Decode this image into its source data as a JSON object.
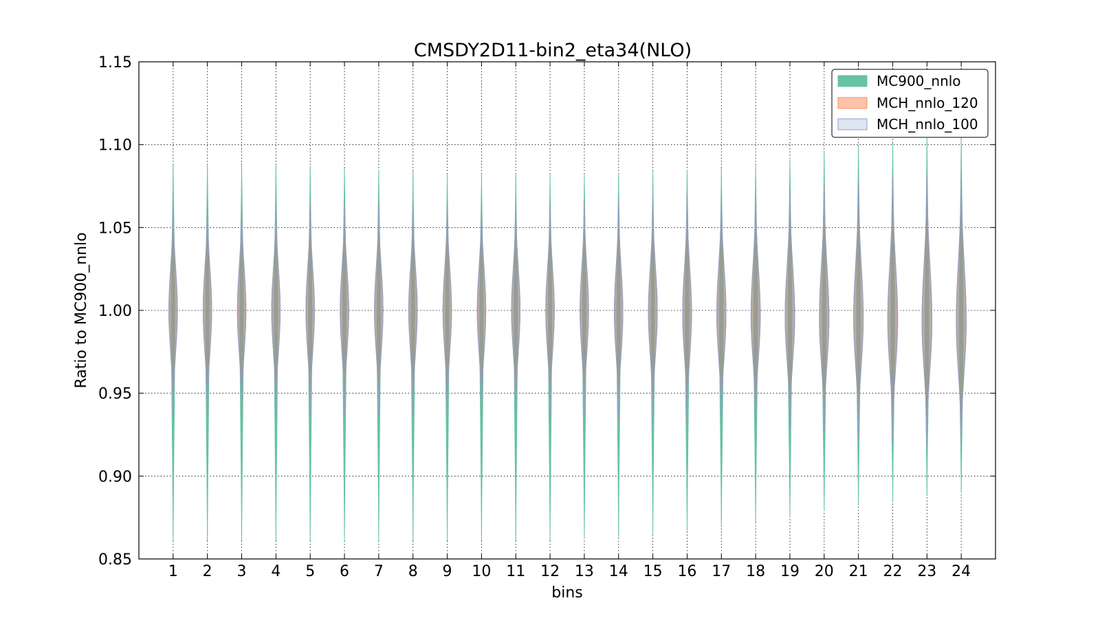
{
  "chart_data": {
    "type": "violin",
    "title": "CMSDY2D11-bin2_eta34(NLO)",
    "xlabel": "bins",
    "ylabel": "Ratio to MC900_nnlo",
    "ylim": [
      0.85,
      1.15
    ],
    "yticks": [
      "0.85",
      "0.90",
      "0.95",
      "1.00",
      "1.05",
      "1.10",
      "1.15"
    ],
    "yticks_values": [
      0.85,
      0.9,
      0.95,
      1.0,
      1.05,
      1.1,
      1.15
    ],
    "categories": [
      "1",
      "2",
      "3",
      "4",
      "5",
      "6",
      "7",
      "8",
      "9",
      "10",
      "11",
      "12",
      "13",
      "14",
      "15",
      "16",
      "17",
      "18",
      "19",
      "20",
      "21",
      "22",
      "23",
      "24"
    ],
    "grid": true,
    "legend_position": "top-right",
    "series": [
      {
        "name": "MC900_nnlo",
        "color": "#66c2a5",
        "min": [
          0.861,
          0.861,
          0.861,
          0.861,
          0.861,
          0.861,
          0.861,
          0.861,
          0.861,
          0.861,
          0.861,
          0.861,
          0.862,
          0.863,
          0.865,
          0.867,
          0.869,
          0.872,
          0.875,
          0.879,
          0.882,
          0.885,
          0.888,
          0.89
        ],
        "max": [
          1.088,
          1.088,
          1.088,
          1.088,
          1.087,
          1.086,
          1.085,
          1.084,
          1.082,
          1.082,
          1.082,
          1.082,
          1.082,
          1.083,
          1.084,
          1.085,
          1.086,
          1.088,
          1.092,
          1.095,
          1.099,
          1.101,
          1.104,
          1.105
        ],
        "width": [
          0.1,
          0.1,
          0.1,
          0.1,
          0.1,
          0.1,
          0.1,
          0.1,
          0.1,
          0.1,
          0.1,
          0.1,
          0.1,
          0.1,
          0.1,
          0.11,
          0.11,
          0.11,
          0.11,
          0.11,
          0.11,
          0.11,
          0.11,
          0.11
        ]
      },
      {
        "name": "MCH_nnlo_120",
        "color": "#fc8d62",
        "min": [
          0.935,
          0.935,
          0.935,
          0.935,
          0.935,
          0.935,
          0.935,
          0.935,
          0.935,
          0.935,
          0.935,
          0.935,
          0.934,
          0.933,
          0.932,
          0.931,
          0.93,
          0.929,
          0.927,
          0.925,
          0.922,
          0.92,
          0.918,
          0.916
        ],
        "max": [
          1.066,
          1.066,
          1.066,
          1.066,
          1.066,
          1.066,
          1.066,
          1.066,
          1.066,
          1.066,
          1.066,
          1.066,
          1.067,
          1.068,
          1.069,
          1.07,
          1.071,
          1.073,
          1.075,
          1.077,
          1.079,
          1.081,
          1.083,
          1.085
        ],
        "width": [
          0.25,
          0.25,
          0.25,
          0.25,
          0.25,
          0.25,
          0.25,
          0.25,
          0.25,
          0.25,
          0.25,
          0.25,
          0.25,
          0.25,
          0.26,
          0.26,
          0.27,
          0.27,
          0.28,
          0.28,
          0.28,
          0.29,
          0.29,
          0.29
        ]
      },
      {
        "name": "MCH_nnlo_100",
        "color": "#8da0cb",
        "min": [
          0.935,
          0.935,
          0.935,
          0.935,
          0.935,
          0.935,
          0.935,
          0.935,
          0.935,
          0.935,
          0.935,
          0.935,
          0.934,
          0.933,
          0.932,
          0.931,
          0.93,
          0.929,
          0.927,
          0.925,
          0.922,
          0.92,
          0.918,
          0.916
        ],
        "max": [
          1.066,
          1.066,
          1.066,
          1.066,
          1.066,
          1.066,
          1.066,
          1.066,
          1.066,
          1.066,
          1.066,
          1.066,
          1.067,
          1.068,
          1.069,
          1.07,
          1.071,
          1.073,
          1.075,
          1.077,
          1.079,
          1.081,
          1.083,
          1.085
        ],
        "width": [
          0.25,
          0.25,
          0.25,
          0.25,
          0.25,
          0.25,
          0.25,
          0.25,
          0.25,
          0.25,
          0.25,
          0.25,
          0.25,
          0.25,
          0.26,
          0.26,
          0.27,
          0.27,
          0.28,
          0.28,
          0.28,
          0.29,
          0.29,
          0.29
        ]
      }
    ],
    "center": [
      1.0,
      1.0,
      1.0,
      1.0,
      1.0,
      1.0,
      1.0,
      1.0,
      1.0,
      1.0,
      1.0,
      1.0,
      1.0,
      0.999,
      0.999,
      0.998,
      0.998,
      0.997,
      0.996,
      0.995,
      0.995,
      0.994,
      0.993,
      0.993
    ]
  }
}
